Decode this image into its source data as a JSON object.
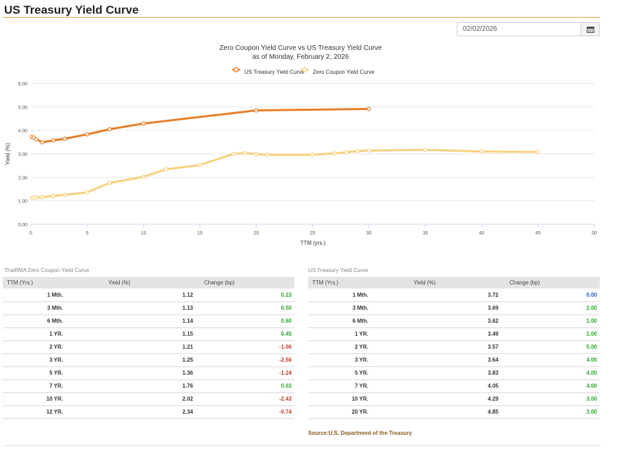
{
  "page": {
    "title": "US Treasury Yield Curve",
    "source": "Source:U.S. Department of the Treasury"
  },
  "date_picker": {
    "value": "02/02/2026"
  },
  "colors": {
    "us": "#e87d26",
    "zero": "#f7d17d",
    "accent": "#e8a33c"
  },
  "chart_data": {
    "type": "line",
    "title": "Zero Coupon Yield Curve vs US Treasury Yield Curve",
    "subtitle": "as of Monday, February 2, 2026",
    "xlabel": "TTM (yrs.)",
    "ylabel": "Yield (%)",
    "xlim": [
      0,
      50
    ],
    "ylim": [
      0,
      6
    ],
    "xticks": [
      "0",
      "5",
      "10",
      "15",
      "20",
      "25",
      "30",
      "35",
      "40",
      "45",
      "50"
    ],
    "yticks": [
      "0.00",
      "1.00",
      "2.00",
      "3.00",
      "4.00",
      "5.00",
      "6.00"
    ],
    "legend": "top-center",
    "series": [
      {
        "name": "US Treasury Yield Curve",
        "x": [
          0.083,
          0.25,
          0.5,
          1,
          2,
          3,
          5,
          7,
          10,
          20,
          30
        ],
        "y": [
          3.72,
          3.69,
          3.62,
          3.49,
          3.57,
          3.64,
          3.83,
          4.05,
          4.29,
          4.85,
          4.91
        ]
      },
      {
        "name": "Zero Coupon Yield Curve",
        "x": [
          0.083,
          0.25,
          0.5,
          1,
          2,
          3,
          5,
          7,
          10,
          12,
          15,
          18,
          19,
          20,
          21,
          25,
          27,
          28,
          29,
          30,
          35,
          40,
          45
        ],
        "y": [
          1.12,
          1.13,
          1.14,
          1.15,
          1.21,
          1.25,
          1.36,
          1.76,
          2.02,
          2.34,
          2.52,
          3.0,
          3.03,
          2.99,
          2.96,
          2.96,
          3.02,
          3.07,
          3.12,
          3.14,
          3.17,
          3.1,
          3.08
        ]
      }
    ]
  },
  "zero_table": {
    "caption": "ThaiBMA Zero Coupon Yield Curve",
    "headers": [
      "TTM (Yrs.)",
      "Yield (%)",
      "Change (bp)"
    ],
    "rows": [
      {
        "ttm": "1 Mth.",
        "yield": "1.12",
        "change": "0.23",
        "dir": "pos"
      },
      {
        "ttm": "3 Mth.",
        "yield": "1.13",
        "change": "0.50",
        "dir": "pos"
      },
      {
        "ttm": "6 Mth.",
        "yield": "1.14",
        "change": "0.60",
        "dir": "pos"
      },
      {
        "ttm": "1 YR.",
        "yield": "1.15",
        "change": "0.45",
        "dir": "pos"
      },
      {
        "ttm": "2 YR.",
        "yield": "1.21",
        "change": "-1.06",
        "dir": "neg"
      },
      {
        "ttm": "3 YR.",
        "yield": "1.25",
        "change": "-2.56",
        "dir": "neg"
      },
      {
        "ttm": "5 YR.",
        "yield": "1.36",
        "change": "-1.24",
        "dir": "neg"
      },
      {
        "ttm": "7 YR.",
        "yield": "1.76",
        "change": "0.03",
        "dir": "pos"
      },
      {
        "ttm": "10 YR.",
        "yield": "2.02",
        "change": "-2.43",
        "dir": "neg"
      },
      {
        "ttm": "12 YR.",
        "yield": "2.34",
        "change": "-0.74",
        "dir": "neg"
      }
    ]
  },
  "us_table": {
    "caption": "US Treasury Yield Curve",
    "headers": [
      "TTM (Yrs.)",
      "Yield (%)",
      "Change (bp)"
    ],
    "rows": [
      {
        "ttm": "1 Mth.",
        "yield": "3.72",
        "change": "0.00",
        "dir": "zero"
      },
      {
        "ttm": "3 Mth.",
        "yield": "3.69",
        "change": "2.00",
        "dir": "pos"
      },
      {
        "ttm": "6 Mth.",
        "yield": "3.62",
        "change": "1.00",
        "dir": "pos"
      },
      {
        "ttm": "1 YR.",
        "yield": "3.49",
        "change": "1.00",
        "dir": "pos"
      },
      {
        "ttm": "2 YR.",
        "yield": "3.57",
        "change": "5.00",
        "dir": "pos"
      },
      {
        "ttm": "3 YR.",
        "yield": "3.64",
        "change": "4.00",
        "dir": "pos"
      },
      {
        "ttm": "5 YR.",
        "yield": "3.83",
        "change": "4.00",
        "dir": "pos"
      },
      {
        "ttm": "7 YR.",
        "yield": "4.05",
        "change": "4.00",
        "dir": "pos"
      },
      {
        "ttm": "10 YR.",
        "yield": "4.29",
        "change": "3.00",
        "dir": "pos"
      },
      {
        "ttm": "20 YR.",
        "yield": "4.85",
        "change": "3.00",
        "dir": "pos"
      }
    ]
  }
}
